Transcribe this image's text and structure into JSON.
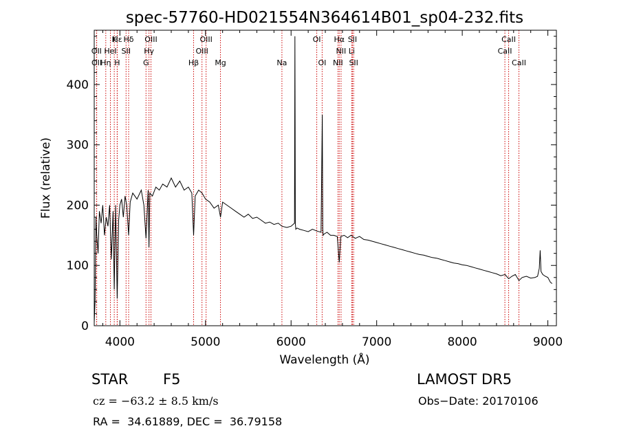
{
  "chart_data": {
    "type": "line",
    "title": "spec-57760-HD021554N364614B01_sp04-232.fits",
    "xlabel": "Wavelength (Å)",
    "ylabel": "Flux (relative)",
    "xlim": [
      3700,
      9100
    ],
    "ylim": [
      0,
      490
    ],
    "xticks": [
      4000,
      5000,
      6000,
      7000,
      8000,
      9000
    ],
    "yticks": [
      0,
      100,
      200,
      300,
      400
    ],
    "grid": false,
    "line_color": "#000000",
    "marker_color": "#cc0000",
    "line_markers": [
      {
        "label": "Hε",
        "x": 3970,
        "row": 0
      },
      {
        "label": "K",
        "x": 3934,
        "row": 0
      },
      {
        "label": "Hδ",
        "x": 4102,
        "row": 0
      },
      {
        "label": "OIII",
        "x": 4363,
        "row": 0
      },
      {
        "label": "OIII",
        "x": 5007,
        "row": 0
      },
      {
        "label": "OI",
        "x": 6300,
        "row": 0
      },
      {
        "label": "Hα",
        "x": 6563,
        "row": 0
      },
      {
        "label": "SII",
        "x": 6717,
        "row": 0
      },
      {
        "label": "CaII",
        "x": 8542,
        "row": 0
      },
      {
        "label": "OII",
        "x": 3727,
        "row": 1
      },
      {
        "label": "HeI",
        "x": 3889,
        "row": 1
      },
      {
        "label": "SII",
        "x": 4072,
        "row": 1
      },
      {
        "label": "Hγ",
        "x": 4340,
        "row": 1
      },
      {
        "label": "OIII",
        "x": 4959,
        "row": 1
      },
      {
        "label": "NII",
        "x": 6584,
        "row": 1
      },
      {
        "label": "Li",
        "x": 6708,
        "row": 1
      },
      {
        "label": "CaII",
        "x": 8498,
        "row": 1
      },
      {
        "label": "OII",
        "x": 3729,
        "row": 2
      },
      {
        "label": "Hη",
        "x": 3835,
        "row": 2
      },
      {
        "label": "H",
        "x": 3968,
        "row": 2
      },
      {
        "label": "G",
        "x": 4305,
        "row": 2
      },
      {
        "label": "Hβ",
        "x": 4861,
        "row": 2
      },
      {
        "label": "Mg",
        "x": 5175,
        "row": 2
      },
      {
        "label": "Na",
        "x": 5893,
        "row": 2
      },
      {
        "label": "OI",
        "x": 6363,
        "row": 2
      },
      {
        "label": "NII",
        "x": 6548,
        "row": 2
      },
      {
        "label": "SII",
        "x": 6731,
        "row": 2
      },
      {
        "label": "CaII",
        "x": 8662,
        "row": 2
      }
    ],
    "series": [
      {
        "x": [
          3700,
          3710,
          3720,
          3730,
          3745,
          3760,
          3780,
          3800,
          3820,
          3840,
          3860,
          3880,
          3900,
          3920,
          3934,
          3950,
          3968,
          3985,
          4000,
          4020,
          4040,
          4060,
          4080,
          4102,
          4120,
          4150,
          4200,
          4250,
          4280,
          4305,
          4330,
          4340,
          4350,
          4380,
          4420,
          4460,
          4500,
          4550,
          4600,
          4650,
          4700,
          4750,
          4800,
          4840,
          4861,
          4880,
          4920,
          4960,
          5000,
          5050,
          5100,
          5150,
          5175,
          5200,
          5250,
          5300,
          5350,
          5400,
          5450,
          5500,
          5550,
          5600,
          5650,
          5700,
          5750,
          5800,
          5850,
          5893,
          5950,
          6000,
          6040,
          6045,
          6050,
          6055,
          6070,
          6100,
          6150,
          6200,
          6250,
          6300,
          6350,
          6365,
          6370,
          6375,
          6385,
          6420,
          6460,
          6500,
          6540,
          6563,
          6580,
          6620,
          6660,
          6700,
          6750,
          6800,
          6850,
          6900,
          6950,
          7000,
          7050,
          7100,
          7150,
          7200,
          7250,
          7300,
          7350,
          7400,
          7450,
          7500,
          7550,
          7600,
          7650,
          7700,
          7750,
          7800,
          7850,
          7900,
          7950,
          8000,
          8050,
          8100,
          8150,
          8200,
          8250,
          8300,
          8350,
          8400,
          8450,
          8500,
          8542,
          8580,
          8620,
          8662,
          8700,
          8750,
          8800,
          8850,
          8880,
          8900,
          8910,
          8920,
          8940,
          8970,
          9000,
          9030,
          9050
        ],
        "values": [
          5,
          40,
          180,
          150,
          120,
          190,
          170,
          200,
          150,
          180,
          165,
          200,
          110,
          190,
          60,
          200,
          45,
          175,
          200,
          210,
          180,
          215,
          200,
          150,
          205,
          220,
          210,
          225,
          200,
          145,
          225,
          130,
          220,
          215,
          230,
          225,
          235,
          230,
          245,
          230,
          240,
          225,
          230,
          220,
          150,
          215,
          225,
          220,
          210,
          205,
          195,
          200,
          180,
          205,
          200,
          195,
          190,
          185,
          180,
          185,
          178,
          180,
          175,
          170,
          172,
          168,
          170,
          165,
          163,
          165,
          170,
          480,
          170,
          160,
          162,
          160,
          158,
          156,
          160,
          157,
          155,
          350,
          160,
          150,
          152,
          155,
          150,
          150,
          148,
          105,
          148,
          150,
          146,
          150,
          145,
          148,
          143,
          142,
          140,
          138,
          136,
          134,
          132,
          130,
          128,
          126,
          124,
          122,
          120,
          118,
          117,
          115,
          113,
          112,
          110,
          108,
          106,
          104,
          103,
          101,
          100,
          98,
          96,
          94,
          92,
          90,
          88,
          86,
          83,
          85,
          78,
          82,
          85,
          75,
          80,
          82,
          79,
          80,
          82,
          95,
          125,
          90,
          85,
          82,
          80,
          72,
          70
        ]
      }
    ]
  },
  "footer": {
    "object_class": "STAR",
    "subclass": "F5",
    "survey": "LAMOST DR5",
    "redshift": "cz = −63.2 ± 8.5 km/s",
    "obs_date": "Obs−Date: 20170106",
    "coords": "RA =  34.61889, DEC =  36.79158"
  }
}
